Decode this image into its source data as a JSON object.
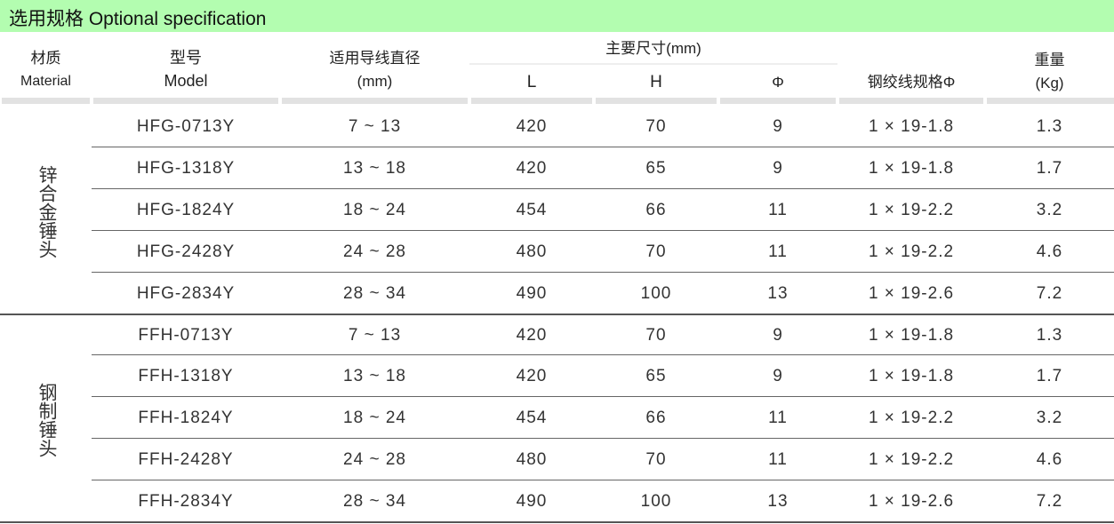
{
  "title": "选用规格  Optional specification",
  "colors": {
    "title_bg": "#b3fdb0",
    "header_bar": "#e2e2e2"
  },
  "headers": {
    "material_cn": "材质",
    "material_en": "Material",
    "model_cn": "型号",
    "model_en": "Model",
    "diameter_cn": "适用导线直径",
    "diameter_unit": "(mm)",
    "dims": "主要尺寸(mm)",
    "L": "L",
    "H": "H",
    "phi": "Φ",
    "strand": "钢绞线规格Φ",
    "weight_cn": "重量",
    "weight_unit": "(Kg)"
  },
  "groups": [
    {
      "material": "锌合金锤头",
      "rows": [
        [
          "HFG-0713Y",
          "7 ~ 13",
          "420",
          "70",
          "9",
          "1 × 19-1.8",
          "1.3"
        ],
        [
          "HFG-1318Y",
          "13 ~ 18",
          "420",
          "65",
          "9",
          "1 × 19-1.8",
          "1.7"
        ],
        [
          "HFG-1824Y",
          "18 ~ 24",
          "454",
          "66",
          "11",
          "1 × 19-2.2",
          "3.2"
        ],
        [
          "HFG-2428Y",
          "24 ~ 28",
          "480",
          "70",
          "11",
          "1 × 19-2.2",
          "4.6"
        ],
        [
          "HFG-2834Y",
          "28 ~ 34",
          "490",
          "100",
          "13",
          "1 × 19-2.6",
          "7.2"
        ]
      ]
    },
    {
      "material": "钢制锤头",
      "rows": [
        [
          "FFH-0713Y",
          "7 ~ 13",
          "420",
          "70",
          "9",
          "1 × 19-1.8",
          "1.3"
        ],
        [
          "FFH-1318Y",
          "13 ~ 18",
          "420",
          "65",
          "9",
          "1 × 19-1.8",
          "1.7"
        ],
        [
          "FFH-1824Y",
          "18 ~ 24",
          "454",
          "66",
          "11",
          "1 × 19-2.2",
          "3.2"
        ],
        [
          "FFH-2428Y",
          "24 ~ 28",
          "480",
          "70",
          "11",
          "1 × 19-2.2",
          "4.6"
        ],
        [
          "FFH-2834Y",
          "28 ~ 34",
          "490",
          "100",
          "13",
          "1 × 19-2.6",
          "7.2"
        ]
      ]
    }
  ]
}
